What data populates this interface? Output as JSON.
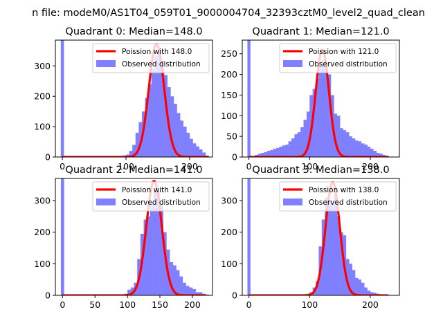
{
  "figure": {
    "suptitle": "n file: modeM0/AS1T04_059T01_9000004704_32393cztM0_level2_quad_clean"
  },
  "colors": {
    "hist": "#8080ff",
    "poisson": "#ff0000",
    "axes": "#000000"
  },
  "chart_data": [
    {
      "type": "bar",
      "title": "Quadrant 0: Median=148.0",
      "median": 148.0,
      "xlim": [
        -11,
        236
      ],
      "ylim": [
        0,
        385
      ],
      "xticks": [
        0,
        100,
        200
      ],
      "yticks": [
        0,
        100,
        200,
        300
      ],
      "bin_width": 5,
      "spike": {
        "x": 0,
        "value": 385
      },
      "bin_starts": [
        95,
        100,
        105,
        110,
        115,
        120,
        125,
        130,
        135,
        140,
        145,
        150,
        155,
        160,
        165,
        170,
        175,
        180,
        185,
        190,
        195,
        200,
        205,
        210,
        215,
        220,
        225
      ],
      "values": [
        5,
        8,
        20,
        40,
        80,
        115,
        150,
        195,
        240,
        290,
        335,
        345,
        300,
        270,
        230,
        200,
        175,
        145,
        120,
        100,
        80,
        60,
        45,
        35,
        25,
        15,
        5
      ],
      "poisson_peak": 372,
      "poisson_x_range": [
        0,
        230
      ],
      "legend": [
        "Poission with 148.0",
        "Observed distribution"
      ]
    },
    {
      "type": "bar",
      "title": "Quadrant 1: Median=121.0",
      "median": 121.0,
      "xlim": [
        -11,
        248
      ],
      "ylim": [
        0,
        283
      ],
      "xticks": [
        0,
        100,
        200
      ],
      "yticks": [
        0,
        50,
        100,
        150,
        200,
        250
      ],
      "bin_width": 5,
      "spike": {
        "x": 0,
        "value": 283
      },
      "bin_starts": [
        10,
        15,
        20,
        25,
        30,
        35,
        40,
        45,
        50,
        55,
        60,
        65,
        70,
        75,
        80,
        85,
        90,
        95,
        100,
        105,
        110,
        115,
        120,
        125,
        130,
        135,
        140,
        145,
        150,
        155,
        160,
        165,
        170,
        175,
        180,
        185,
        190,
        195,
        200,
        205,
        210,
        215,
        220,
        225
      ],
      "values": [
        5,
        8,
        10,
        12,
        15,
        17,
        20,
        22,
        25,
        28,
        30,
        38,
        45,
        55,
        60,
        72,
        90,
        110,
        150,
        165,
        190,
        222,
        235,
        215,
        200,
        150,
        105,
        100,
        70,
        65,
        60,
        50,
        45,
        40,
        38,
        33,
        30,
        25,
        20,
        15,
        10,
        8,
        5,
        3
      ],
      "poisson_peak": 260,
      "poisson_x_range": [
        0,
        230
      ],
      "legend": [
        "Poission with 121.0",
        "Observed distribution"
      ]
    },
    {
      "type": "bar",
      "title": "Quadrant 2: Median=141.0",
      "median": 141.0,
      "xlim": [
        -11,
        231
      ],
      "ylim": [
        0,
        370
      ],
      "xticks": [
        0,
        50,
        100,
        150,
        200
      ],
      "yticks": [
        0,
        100,
        200,
        300
      ],
      "bin_width": 5,
      "spike": {
        "x": 0,
        "value": 370
      },
      "bin_starts": [
        95,
        100,
        105,
        110,
        115,
        120,
        125,
        130,
        135,
        140,
        145,
        150,
        155,
        160,
        165,
        170,
        175,
        180,
        185,
        190,
        195,
        200,
        205,
        210,
        215,
        220
      ],
      "values": [
        5,
        18,
        25,
        40,
        115,
        195,
        240,
        250,
        290,
        330,
        330,
        285,
        200,
        145,
        105,
        95,
        80,
        60,
        40,
        30,
        25,
        20,
        10,
        10,
        5,
        3
      ],
      "poisson_peak": 362,
      "poisson_x_range": [
        0,
        220
      ],
      "legend": [
        "Poission with 141.0",
        "Observed distribution"
      ]
    },
    {
      "type": "bar",
      "title": "Quadrant 3: Median=138.0",
      "median": 138.0,
      "xlim": [
        -11,
        248
      ],
      "ylim": [
        0,
        370
      ],
      "xticks": [
        0,
        100,
        200
      ],
      "yticks": [
        0,
        100,
        200,
        300
      ],
      "bin_width": 5,
      "spike": {
        "x": 0,
        "value": 370
      },
      "bin_starts": [
        95,
        100,
        105,
        110,
        115,
        120,
        125,
        130,
        135,
        140,
        145,
        150,
        155,
        160,
        165,
        170,
        175,
        180,
        185,
        190,
        195,
        200,
        205,
        210,
        215,
        220
      ],
      "values": [
        5,
        10,
        25,
        45,
        155,
        240,
        310,
        300,
        290,
        320,
        250,
        200,
        190,
        115,
        100,
        80,
        55,
        50,
        40,
        25,
        15,
        10,
        8,
        5,
        3,
        2
      ],
      "poisson_peak": 358,
      "poisson_x_range": [
        0,
        230
      ],
      "legend": [
        "Poission with 138.0",
        "Observed distribution"
      ]
    }
  ]
}
